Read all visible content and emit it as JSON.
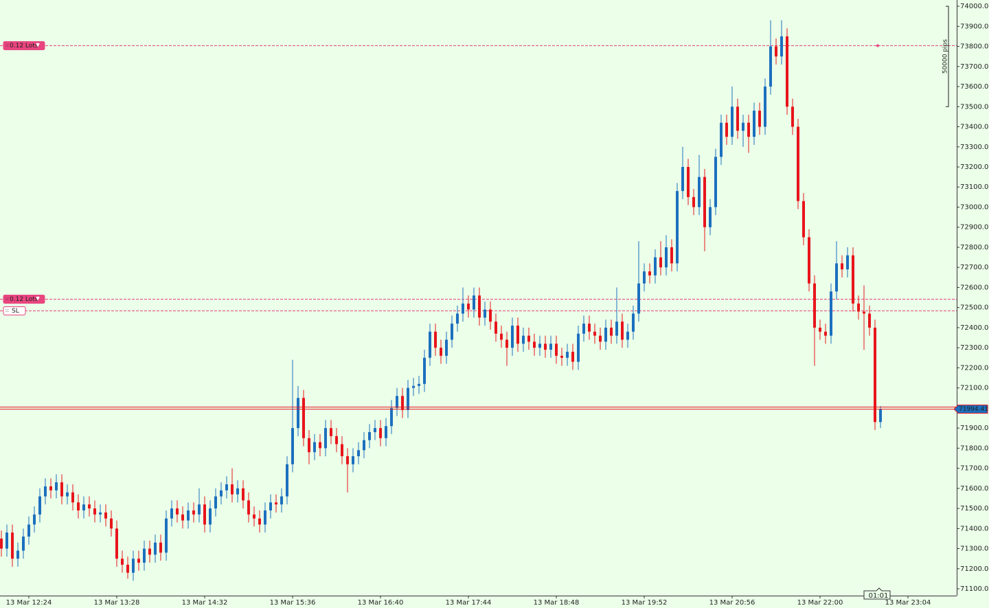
{
  "chart_data": {
    "type": "candlestick",
    "up_color": "#1c6fbe",
    "down_color": "#e8141b",
    "background": "#ebffe9",
    "categories": [
      null,
      null,
      null,
      null,
      null,
      "13 Mar 12:24",
      null,
      null,
      null,
      null,
      null,
      null,
      null,
      null,
      null,
      null,
      null,
      null,
      null,
      null,
      null,
      "13 Mar 13:28",
      null,
      null,
      null,
      null,
      null,
      null,
      null,
      null,
      null,
      null,
      null,
      null,
      null,
      null,
      null,
      "13 Mar 14:32",
      null,
      null,
      null,
      null,
      null,
      null,
      null,
      null,
      null,
      null,
      null,
      null,
      null,
      null,
      null,
      "13 Mar 15:36",
      null,
      null,
      null,
      null,
      null,
      null,
      null,
      null,
      null,
      null,
      null,
      null,
      null,
      null,
      null,
      "13 Mar 16:40",
      null,
      null,
      null,
      null,
      null,
      null,
      null,
      null,
      null,
      null,
      null,
      null,
      null,
      null,
      null,
      "13 Mar 17:44",
      null,
      null,
      null,
      null,
      null,
      null,
      null,
      null,
      null,
      null,
      null,
      null,
      null,
      null,
      null,
      "13 Mar 18:48",
      null,
      null,
      null,
      null,
      null,
      null,
      null,
      null,
      null,
      null,
      null,
      null,
      null,
      null,
      null,
      "13 Mar 19:52",
      null,
      null,
      null,
      null,
      null,
      null,
      null,
      null,
      null,
      null,
      null,
      null,
      null,
      null,
      null,
      "13 Mar 20:56",
      null,
      null,
      null,
      null,
      null,
      null,
      null,
      null,
      null,
      null,
      null,
      null,
      null,
      null,
      null,
      "13 Mar 22:00",
      null,
      null,
      null,
      null,
      null,
      null,
      null,
      null,
      null,
      null,
      null,
      null,
      null,
      null,
      null,
      "13 Mar 23:04"
    ],
    "open": [
      71350,
      71300,
      71380,
      71250,
      71290,
      71360,
      71420,
      71470,
      71560,
      71610,
      71590,
      71630,
      71560,
      71580,
      71530,
      71490,
      71520,
      71500,
      71470,
      71480,
      71450,
      71400,
      71250,
      71220,
      71180,
      71250,
      71230,
      71300,
      71270,
      71330,
      71280,
      71450,
      71500,
      71470,
      71440,
      71490,
      71470,
      71520,
      71420,
      71500,
      71560,
      71590,
      71620,
      71570,
      71600,
      71540,
      71470,
      71450,
      71420,
      71490,
      71530,
      71520,
      71560,
      71720,
      71900,
      72050,
      71850,
      71780,
      71830,
      71800,
      71900,
      71860,
      71820,
      71760,
      71720,
      71760,
      71790,
      71840,
      71880,
      71900,
      71850,
      71910,
      72000,
      72060,
      71990,
      72100,
      72110,
      72120,
      72250,
      72380,
      72300,
      72260,
      72340,
      72420,
      72470,
      72520,
      72490,
      72560,
      72450,
      72490,
      72430,
      72370,
      72340,
      72300,
      72410,
      72320,
      72360,
      72330,
      72300,
      72320,
      72290,
      72320,
      72260,
      72250,
      72280,
      72230,
      72370,
      72420,
      72380,
      72360,
      72330,
      72400,
      72360,
      72430,
      72340,
      72380,
      72470,
      72620,
      72680,
      72660,
      72750,
      72700,
      72800,
      72720,
      73080,
      73200,
      73050,
      73000,
      73150,
      72900,
      73000,
      73250,
      73420,
      73350,
      73500,
      73380,
      73420,
      73350,
      73480,
      73400,
      73600,
      73800,
      73750,
      73850,
      73500,
      73400,
      73030,
      72850,
      72620,
      72400,
      72380,
      72360,
      72580,
      72720,
      72690,
      72760,
      72520,
      72480,
      72470,
      72400,
      71930,
      null,
      null,
      null,
      null,
      null
    ],
    "high": [
      71390,
      71420,
      71420,
      71330,
      71400,
      71460,
      71510,
      71600,
      71650,
      71650,
      71670,
      71670,
      71620,
      71620,
      71570,
      71560,
      71560,
      71540,
      71520,
      71520,
      71490,
      71440,
      71290,
      71260,
      71290,
      71290,
      71340,
      71340,
      71370,
      71370,
      71490,
      71540,
      71540,
      71510,
      71530,
      71530,
      71600,
      71560,
      71540,
      71600,
      71630,
      71660,
      71700,
      71640,
      71640,
      71580,
      71510,
      71490,
      71530,
      71570,
      71570,
      71600,
      71760,
      72240,
      72110,
      72090,
      71890,
      71870,
      71870,
      71940,
      71940,
      71900,
      71860,
      71800,
      71800,
      71830,
      71880,
      71920,
      71940,
      71940,
      71950,
      72040,
      72100,
      72100,
      72140,
      72150,
      72160,
      72290,
      72420,
      72420,
      72340,
      72380,
      72460,
      72510,
      72600,
      72560,
      72600,
      72600,
      72530,
      72530,
      72470,
      72410,
      72380,
      72450,
      72450,
      72400,
      72400,
      72370,
      72360,
      72360,
      72360,
      72360,
      72300,
      72320,
      72320,
      72410,
      72460,
      72460,
      72420,
      72400,
      72440,
      72440,
      72600,
      72470,
      72420,
      72510,
      72830,
      72720,
      72720,
      72790,
      72830,
      72860,
      72840,
      73120,
      73300,
      73240,
      73090,
      73260,
      73190,
      73040,
      73290,
      73460,
      73460,
      73600,
      73540,
      73460,
      73460,
      73520,
      73520,
      73640,
      73930,
      73840,
      73930,
      73890,
      73540,
      73440,
      73070,
      72890,
      72660,
      72440,
      72420,
      72620,
      72830,
      72760,
      72800,
      72800,
      72560,
      72610,
      72510,
      72440,
      72010,
      null,
      null,
      null,
      null,
      null
    ],
    "low": [
      71260,
      71260,
      71210,
      71210,
      71250,
      71320,
      71380,
      71430,
      71520,
      71550,
      71550,
      71520,
      71520,
      71490,
      71450,
      71450,
      71460,
      71430,
      71430,
      71410,
      71360,
      71210,
      71180,
      71150,
      71140,
      71190,
      71190,
      71230,
      71230,
      71240,
      71240,
      71410,
      71430,
      71400,
      71400,
      71430,
      71430,
      71380,
      71380,
      71460,
      71520,
      71550,
      71530,
      71530,
      71500,
      71430,
      71410,
      71380,
      71380,
      71450,
      71480,
      71480,
      71520,
      71680,
      71860,
      71810,
      71720,
      71740,
      71760,
      71760,
      71820,
      71780,
      71720,
      71580,
      71680,
      71720,
      71750,
      71800,
      71840,
      71810,
      71810,
      71870,
      71960,
      71950,
      71950,
      72060,
      72070,
      72080,
      72210,
      72260,
      72220,
      72220,
      72300,
      72380,
      72430,
      72450,
      72450,
      72410,
      72410,
      72390,
      72330,
      72300,
      72210,
      72260,
      72280,
      72280,
      72290,
      72260,
      72260,
      72250,
      72250,
      72220,
      72210,
      72210,
      72190,
      72190,
      72330,
      72340,
      72320,
      72290,
      72290,
      72320,
      72320,
      72300,
      72300,
      72340,
      72430,
      72580,
      72620,
      72620,
      72660,
      72660,
      72680,
      72680,
      73040,
      73010,
      72960,
      72960,
      72780,
      72860,
      72960,
      73210,
      73310,
      73310,
      73340,
      73300,
      73270,
      73310,
      73360,
      73360,
      73560,
      73710,
      73710,
      73460,
      73360,
      72990,
      72810,
      72580,
      72210,
      72340,
      72320,
      72320,
      72540,
      72650,
      72650,
      72480,
      72440,
      72290,
      72360,
      71890,
      71900,
      null,
      null,
      null,
      null,
      null
    ],
    "close": [
      71300,
      71380,
      71250,
      71290,
      71360,
      71420,
      71470,
      71560,
      71610,
      71590,
      71630,
      71560,
      71580,
      71530,
      71490,
      71520,
      71500,
      71470,
      71480,
      71450,
      71400,
      71250,
      71220,
      71180,
      71250,
      71230,
      71300,
      71270,
      71330,
      71280,
      71450,
      71500,
      71470,
      71440,
      71490,
      71470,
      71520,
      71420,
      71500,
      71560,
      71590,
      71620,
      71570,
      71600,
      71540,
      71470,
      71450,
      71420,
      71490,
      71530,
      71520,
      71560,
      71720,
      71900,
      72050,
      71850,
      71780,
      71830,
      71800,
      71900,
      71860,
      71820,
      71760,
      71720,
      71760,
      71790,
      71840,
      71880,
      71900,
      71850,
      71910,
      72000,
      72060,
      71990,
      72100,
      72110,
      72120,
      72250,
      72380,
      72300,
      72260,
      72340,
      72420,
      72470,
      72520,
      72490,
      72560,
      72450,
      72490,
      72430,
      72370,
      72340,
      72300,
      72410,
      72320,
      72360,
      72330,
      72300,
      72320,
      72290,
      72320,
      72260,
      72250,
      72280,
      72230,
      72370,
      72420,
      72380,
      72360,
      72330,
      72400,
      72360,
      72430,
      72340,
      72380,
      72470,
      72620,
      72680,
      72660,
      72750,
      72700,
      72800,
      72720,
      73080,
      73200,
      73050,
      73000,
      73150,
      72900,
      73000,
      73250,
      73420,
      73350,
      73500,
      73380,
      73420,
      73350,
      73480,
      73400,
      73600,
      73800,
      73750,
      73850,
      73500,
      73400,
      73030,
      72850,
      72620,
      72400,
      72380,
      72360,
      72580,
      72720,
      72690,
      72760,
      72520,
      72480,
      72470,
      72400,
      71930,
      71994.41,
      null,
      null,
      null,
      null,
      null
    ],
    "ylim": [
      71066,
      74031
    ],
    "yticks": [
      {
        "value": 71100,
        "label": "71100.00"
      },
      {
        "value": 71200,
        "label": "71200.00"
      },
      {
        "value": 71300,
        "label": "71300.00"
      },
      {
        "value": 71400,
        "label": "71400.00"
      },
      {
        "value": 71500,
        "label": "71500.00"
      },
      {
        "value": 71600,
        "label": "71600.00"
      },
      {
        "value": 71700,
        "label": "71700.00"
      },
      {
        "value": 71800,
        "label": "71800.00"
      },
      {
        "value": 71900,
        "label": "71900.00"
      },
      {
        "value": 72000,
        "label": "72000.00"
      },
      {
        "value": 72100,
        "label": "72100.00"
      },
      {
        "value": 72200,
        "label": "72200.00"
      },
      {
        "value": 72300,
        "label": "72300.00"
      },
      {
        "value": 72400,
        "label": "72400.00"
      },
      {
        "value": 72500,
        "label": "72500.00"
      },
      {
        "value": 72600,
        "label": "72600.00"
      },
      {
        "value": 72700,
        "label": "72700.00"
      },
      {
        "value": 72800,
        "label": "72800.00"
      },
      {
        "value": 72900,
        "label": "72900.00"
      },
      {
        "value": 73000,
        "label": "73000.00"
      },
      {
        "value": 73100,
        "label": "73100.00"
      },
      {
        "value": 73200,
        "label": "73200.00"
      },
      {
        "value": 73300,
        "label": "73300.00"
      },
      {
        "value": 73400,
        "label": "73400.00"
      },
      {
        "value": 73500,
        "label": "73500.00"
      },
      {
        "value": 73600,
        "label": "73600.00"
      },
      {
        "value": 73700,
        "label": "73700.00"
      },
      {
        "value": 73800,
        "label": "73800.00"
      },
      {
        "value": 73900,
        "label": "73900.00"
      },
      {
        "value": 74000,
        "label": "74000.00"
      }
    ],
    "grid": false,
    "order_lines": [
      {
        "label": "0.12 Lots",
        "value": 73805,
        "color": "#e8457f",
        "style": "filled"
      },
      {
        "label": "0.12 Lots",
        "value": 72543,
        "color": "#e8457f",
        "style": "filled"
      },
      {
        "label": "SL",
        "value": 72485,
        "color": "#e8457f",
        "style": "outline"
      }
    ],
    "current_price": {
      "value": 71994.41,
      "color": "#e8141b",
      "tag_color": "#1c6fbe"
    },
    "pips_ruler": {
      "label": "50000 pips",
      "from": 74000,
      "to": 73500
    },
    "timer": "01:01"
  }
}
